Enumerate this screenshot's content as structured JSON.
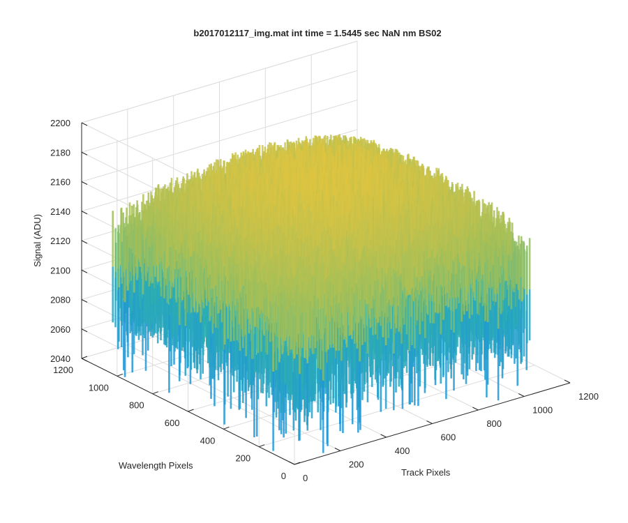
{
  "chart_data": {
    "type": "surface",
    "title": "b2017012117_img.mat int time = 1.5445 sec  NaN nm BS02",
    "xlabel": "Track Pixels",
    "ylabel": "Wavelength Pixels",
    "zlabel": "Signal (ADU)",
    "xlim": [
      0,
      1200
    ],
    "ylim": [
      0,
      1200
    ],
    "zlim": [
      2040,
      2200
    ],
    "x_ticks": [
      0,
      200,
      400,
      600,
      800,
      1000,
      1200
    ],
    "y_ticks": [
      0,
      200,
      400,
      600,
      800,
      1000,
      1200
    ],
    "z_ticks": [
      2040,
      2060,
      2080,
      2100,
      2120,
      2140,
      2160,
      2180,
      2200
    ],
    "x_tick_labels": [
      "0",
      "200",
      "400",
      "600",
      "800",
      "1000",
      "1200"
    ],
    "y_tick_labels": [
      "0",
      "200",
      "400",
      "600",
      "800",
      "1000",
      "1200"
    ],
    "z_tick_labels": [
      "2040",
      "2060",
      "2080",
      "2100",
      "2120",
      "2140",
      "2160",
      "2180",
      "2200"
    ],
    "data_extent": {
      "x": [
        0,
        1024
      ],
      "y": [
        0,
        1024
      ]
    },
    "surface_summary": {
      "mean_center": 2160,
      "mean_edges": 2120,
      "noise_range": [
        2050,
        2190
      ],
      "min_value": 2040
    },
    "grid": true,
    "colormap": "parula",
    "colors": {
      "low": "#1f97d6",
      "mid": "#34b8a2",
      "high": "#d9c040",
      "axis": "#262626",
      "grid": "#dcdcdc"
    }
  }
}
